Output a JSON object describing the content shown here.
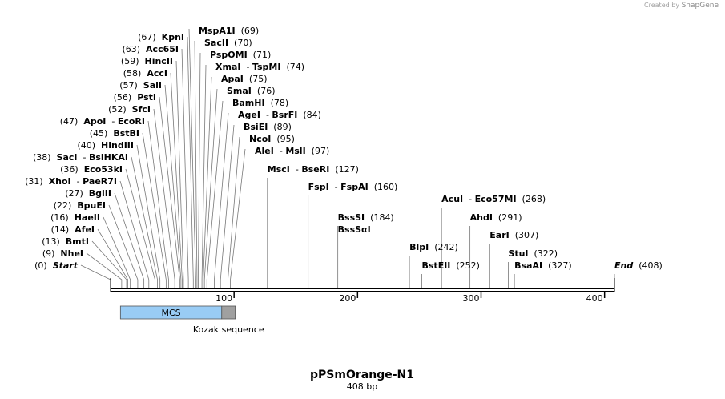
{
  "credit": {
    "prefix": "Created by",
    "brand": "SnapGene"
  },
  "title": "pPSmOrange-N1",
  "subtitle": "408 bp",
  "sequence_length": 408,
  "ruler": {
    "ticks": [
      {
        "value": 100,
        "label": "100"
      },
      {
        "value": 200,
        "label": "200"
      },
      {
        "value": 300,
        "label": "300"
      },
      {
        "value": 400,
        "label": "400"
      }
    ]
  },
  "features": [
    {
      "name": "MCS",
      "start": 8,
      "end": 90,
      "color": "#99ccf5"
    },
    {
      "name": "Kozak sequence",
      "start": 90,
      "end": 101,
      "color": "#a0a0a0"
    }
  ],
  "left_sites": [
    {
      "pos": 0,
      "label": "(0)",
      "names": [
        "Start"
      ],
      "italic": true
    },
    {
      "pos": 9,
      "label": "(9)",
      "names": [
        "NheI"
      ]
    },
    {
      "pos": 13,
      "label": "(13)",
      "names": [
        "BmtI"
      ]
    },
    {
      "pos": 14,
      "label": "(14)",
      "names": [
        "AfeI"
      ]
    },
    {
      "pos": 16,
      "label": "(16)",
      "names": [
        "HaeII"
      ]
    },
    {
      "pos": 22,
      "label": "(22)",
      "names": [
        "BpuEI"
      ]
    },
    {
      "pos": 27,
      "label": "(27)",
      "names": [
        "BglII"
      ]
    },
    {
      "pos": 31,
      "label": "(31)",
      "names": [
        "XhoI",
        "PaeR7I"
      ]
    },
    {
      "pos": 36,
      "label": "(36)",
      "names": [
        "Eco53kI"
      ]
    },
    {
      "pos": 38,
      "label": "(38)",
      "names": [
        "SacI",
        "BsiHKAI"
      ]
    },
    {
      "pos": 40,
      "label": "(40)",
      "names": [
        "HindIII"
      ]
    },
    {
      "pos": 45,
      "label": "(45)",
      "names": [
        "BstBI"
      ]
    },
    {
      "pos": 47,
      "label": "(47)",
      "names": [
        "ApoI",
        "EcoRI"
      ]
    },
    {
      "pos": 52,
      "label": "(52)",
      "names": [
        "SfcI"
      ]
    },
    {
      "pos": 56,
      "label": "(56)",
      "names": [
        "PstI"
      ]
    },
    {
      "pos": 57,
      "label": "(57)",
      "names": [
        "SalI"
      ]
    },
    {
      "pos": 58,
      "label": "(58)",
      "names": [
        "AccI"
      ]
    },
    {
      "pos": 59,
      "label": "(59)",
      "names": [
        "HincII"
      ]
    },
    {
      "pos": 63,
      "label": "(63)",
      "names": [
        "Acc65I"
      ]
    },
    {
      "pos": 67,
      "label": "(67)",
      "names": [
        "KpnI"
      ]
    }
  ],
  "right_sites": [
    {
      "pos": 69,
      "label": "(69)",
      "names": [
        "MspA1I"
      ]
    },
    {
      "pos": 70,
      "label": "(70)",
      "names": [
        "SacII"
      ]
    },
    {
      "pos": 71,
      "label": "(71)",
      "names": [
        "PspOMI"
      ]
    },
    {
      "pos": 74,
      "label": "(74)",
      "names": [
        "XmaI",
        "TspMI"
      ]
    },
    {
      "pos": 75,
      "label": "(75)",
      "names": [
        "ApaI"
      ]
    },
    {
      "pos": 76,
      "label": "(76)",
      "names": [
        "SmaI"
      ]
    },
    {
      "pos": 78,
      "label": "(78)",
      "names": [
        "BamHI"
      ]
    },
    {
      "pos": 84,
      "label": "(84)",
      "names": [
        "AgeI",
        "BsrFI"
      ]
    },
    {
      "pos": 89,
      "label": "(89)",
      "names": [
        "BsiEI"
      ]
    },
    {
      "pos": 95,
      "label": "(95)",
      "names": [
        "NcoI"
      ]
    },
    {
      "pos": 97,
      "label": "(97)",
      "names": [
        "AleI",
        "MslI"
      ]
    }
  ],
  "other_sites": [
    {
      "pos": 127,
      "label": "(127)",
      "names": [
        "MscI",
        "BseRI"
      ]
    },
    {
      "pos": 160,
      "label": "(160)",
      "names": [
        "FspI",
        "FspAI"
      ]
    },
    {
      "pos": 184,
      "label": "(184)",
      "names": [
        "BssSI"
      ],
      "extra": "BssSαI"
    },
    {
      "pos": 242,
      "label": "(242)",
      "names": [
        "BlpI"
      ]
    },
    {
      "pos": 252,
      "label": "(252)",
      "names": [
        "BstEII"
      ]
    },
    {
      "pos": 268,
      "label": "(268)",
      "names": [
        "AcuI",
        "Eco57MI"
      ]
    },
    {
      "pos": 291,
      "label": "(291)",
      "names": [
        "AhdI"
      ]
    },
    {
      "pos": 307,
      "label": "(307)",
      "names": [
        "EarI"
      ]
    },
    {
      "pos": 322,
      "label": "(322)",
      "names": [
        "StuI"
      ]
    },
    {
      "pos": 327,
      "label": "(327)",
      "names": [
        "BsaAI"
      ]
    },
    {
      "pos": 408,
      "label": "(408)",
      "names": [
        "End"
      ],
      "italic": true
    }
  ]
}
